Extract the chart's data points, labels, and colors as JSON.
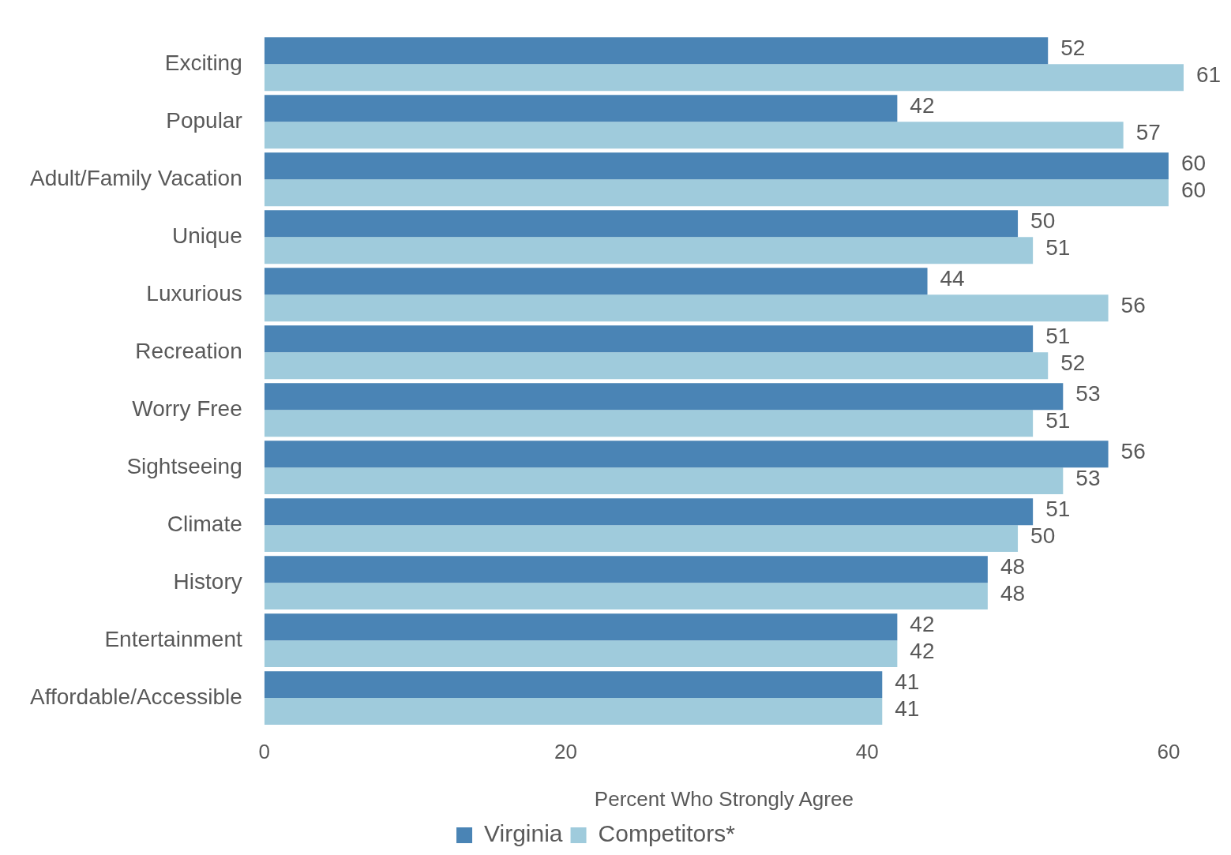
{
  "chart_data": {
    "type": "bar",
    "orientation": "horizontal",
    "xlabel": "Percent Who Strongly Agree",
    "categories": [
      "Exciting",
      "Popular",
      "Adult/Family Vacation",
      "Unique",
      "Luxurious",
      "Recreation",
      "Worry Free",
      "Sightseeing",
      "Climate",
      "History",
      "Entertainment",
      "Affordable/Accessible"
    ],
    "series": [
      {
        "name": "Virginia",
        "color": "#4a84b5",
        "values": [
          52,
          42,
          60,
          50,
          44,
          51,
          53,
          56,
          51,
          48,
          42,
          41
        ]
      },
      {
        "name": "Competitors*",
        "color": "#9fcbdc",
        "values": [
          61,
          57,
          60,
          51,
          56,
          52,
          51,
          53,
          50,
          48,
          42,
          41
        ]
      }
    ],
    "xlim": [
      0,
      61
    ],
    "xticks": [
      0,
      20,
      40,
      60
    ],
    "grid": false,
    "legend": "bottom",
    "data_labels": true
  }
}
